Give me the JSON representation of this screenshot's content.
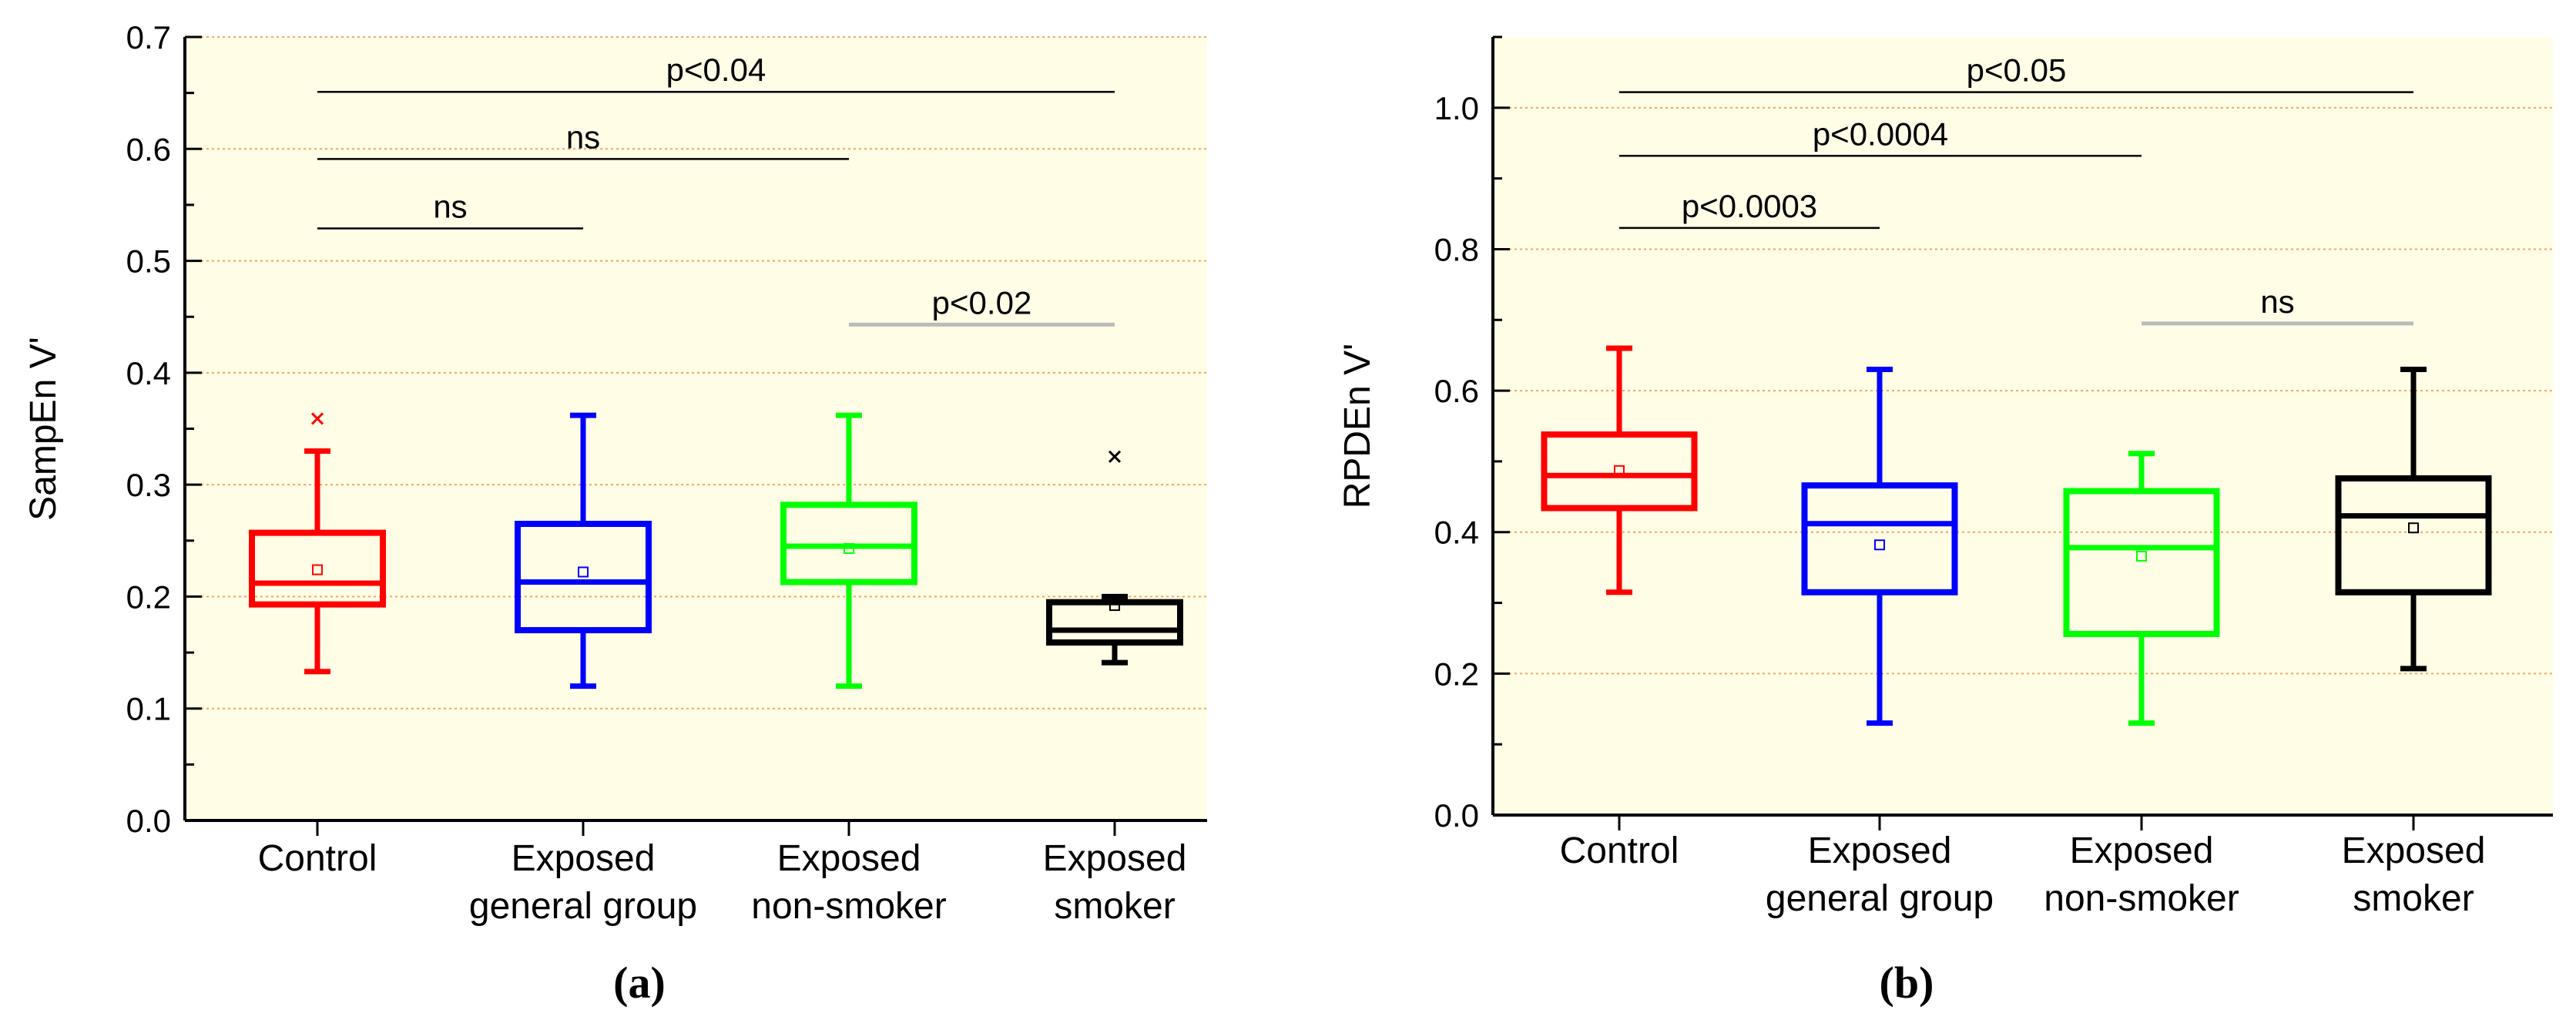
{
  "chart_data": [
    {
      "type": "box",
      "panel_label": "(a)",
      "ylabel": "SampEn V'",
      "ylim": [
        0,
        0.7
      ],
      "yticks": [
        0.0,
        0.1,
        0.2,
        0.3,
        0.4,
        0.5,
        0.6,
        0.7
      ],
      "ytick_labels": [
        "0.0",
        "0.1",
        "0.2",
        "0.3",
        "0.4",
        "0.5",
        "0.6",
        "0.7"
      ],
      "grid": "horizontal dotted",
      "background": "#FFFDE6",
      "categories": [
        {
          "label": [
            "Control"
          ],
          "color": "#FF0000",
          "whisker_low": 0.133,
          "q1": 0.193,
          "median": 0.212,
          "q3": 0.257,
          "whisker_high": 0.33,
          "mean": 0.224,
          "outliers": [
            0.359
          ]
        },
        {
          "label": [
            "Exposed",
            "general group"
          ],
          "color": "#0000FF",
          "whisker_low": 0.12,
          "q1": 0.17,
          "median": 0.213,
          "q3": 0.265,
          "whisker_high": 0.362,
          "mean": 0.222,
          "outliers": []
        },
        {
          "label": [
            "Exposed",
            "non-smoker"
          ],
          "color": "#00FF00",
          "whisker_low": 0.12,
          "q1": 0.213,
          "median": 0.245,
          "q3": 0.282,
          "whisker_high": 0.362,
          "mean": 0.243,
          "outliers": []
        },
        {
          "label": [
            "Exposed",
            "smoker"
          ],
          "color": "#000000",
          "whisker_low": 0.141,
          "q1": 0.159,
          "median": 0.17,
          "q3": 0.195,
          "whisker_high": 0.2,
          "mean": 0.192,
          "outliers": [
            0.325
          ]
        }
      ],
      "annotations": [
        {
          "from": 0,
          "to": 3,
          "y": 0.651,
          "text": "p<0.04",
          "line_color": "#000000"
        },
        {
          "from": 0,
          "to": 2,
          "y": 0.591,
          "text": "ns",
          "line_color": "#000000"
        },
        {
          "from": 0,
          "to": 1,
          "y": 0.529,
          "text": "ns",
          "line_color": "#000000"
        },
        {
          "from": 2,
          "to": 3,
          "y": 0.443,
          "text": "p<0.02",
          "line_color": "#BBBBBB"
        }
      ]
    },
    {
      "type": "box",
      "panel_label": "(b)",
      "ylabel": "RPDEn V'",
      "ylim": [
        0,
        1.1
      ],
      "yticks": [
        0.0,
        0.2,
        0.4,
        0.6,
        0.8,
        1.0
      ],
      "ytick_labels": [
        "0.0",
        "0.2",
        "0.4",
        "0.6",
        "0.8",
        "1.0"
      ],
      "grid": "horizontal dotted",
      "background": "#FFFDE6",
      "categories": [
        {
          "label": [
            "Control"
          ],
          "color": "#FF0000",
          "whisker_low": 0.315,
          "q1": 0.434,
          "median": 0.48,
          "q3": 0.538,
          "whisker_high": 0.66,
          "mean": 0.487,
          "outliers": []
        },
        {
          "label": [
            "Exposed",
            "general group"
          ],
          "color": "#0000FF",
          "whisker_low": 0.13,
          "q1": 0.315,
          "median": 0.412,
          "q3": 0.466,
          "whisker_high": 0.63,
          "mean": 0.382,
          "outliers": []
        },
        {
          "label": [
            "Exposed",
            "non-smoker"
          ],
          "color": "#00FF00",
          "whisker_low": 0.13,
          "q1": 0.256,
          "median": 0.378,
          "q3": 0.458,
          "whisker_high": 0.511,
          "mean": 0.366,
          "outliers": []
        },
        {
          "label": [
            "Exposed",
            "smoker"
          ],
          "color": "#000000",
          "whisker_low": 0.207,
          "q1": 0.315,
          "median": 0.423,
          "q3": 0.476,
          "whisker_high": 0.63,
          "mean": 0.406,
          "outliers": []
        }
      ],
      "annotations": [
        {
          "from": 0,
          "to": 3,
          "y": 1.022,
          "text": "p<0.05",
          "line_color": "#000000"
        },
        {
          "from": 0,
          "to": 2,
          "y": 0.932,
          "text": "p<0.0004",
          "line_color": "#000000"
        },
        {
          "from": 0,
          "to": 1,
          "y": 0.83,
          "text": "p<0.0003",
          "line_color": "#000000"
        },
        {
          "from": 2,
          "to": 3,
          "y": 0.695,
          "text": "ns",
          "line_color": "#BBBBBB"
        }
      ]
    }
  ]
}
